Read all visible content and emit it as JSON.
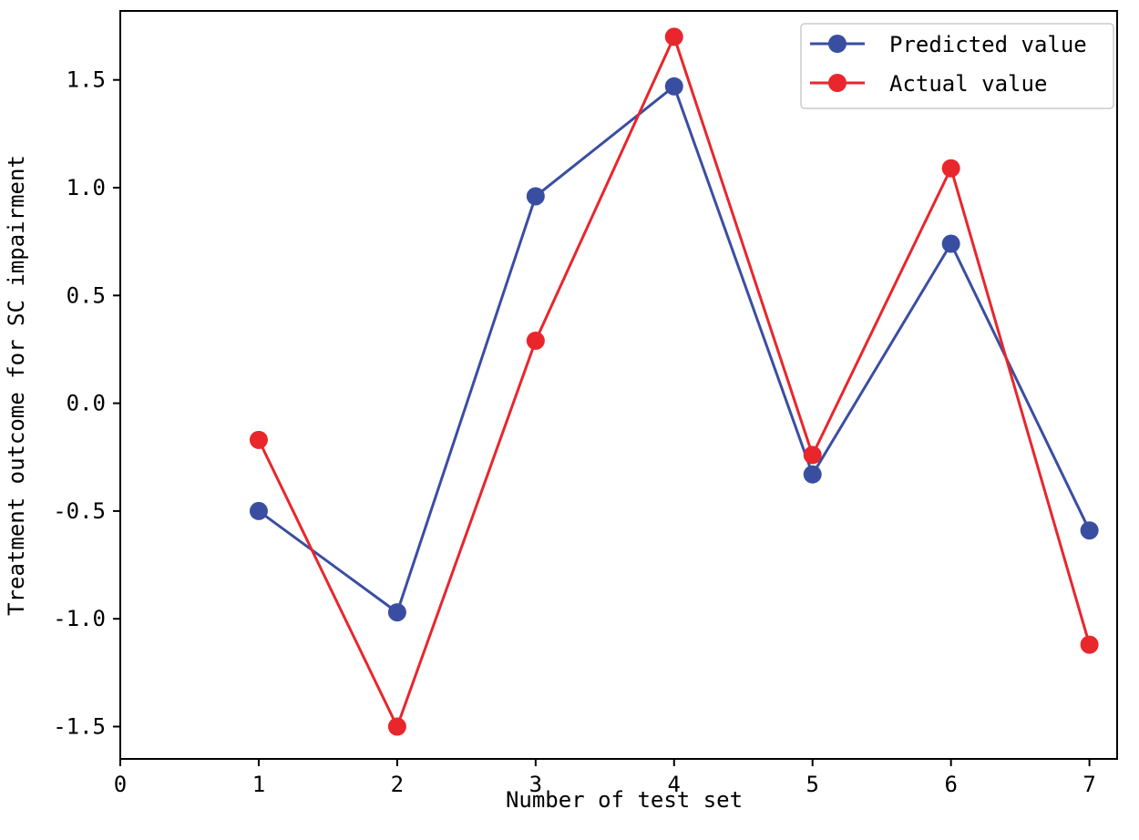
{
  "chart_data": {
    "type": "line",
    "xlabel": "Number of test set",
    "ylabel": "Treatment outcome for SC impairment",
    "xlim": [
      0,
      7.2
    ],
    "ylim": [
      -1.65,
      1.82
    ],
    "x_ticks": [
      0,
      1,
      2,
      3,
      4,
      5,
      6,
      7
    ],
    "x_tick_labels": [
      "0",
      "1",
      "2",
      "3",
      "4",
      "5",
      "6",
      "7"
    ],
    "y_ticks": [
      -1.5,
      -1.0,
      -0.5,
      0.0,
      0.5,
      1.0,
      1.5
    ],
    "y_tick_labels": [
      "-1.5",
      "-1.0",
      "-0.5",
      "0.0",
      "0.5",
      "1.0",
      "1.5"
    ],
    "legend_position": "top-right",
    "x": [
      1,
      2,
      3,
      4,
      5,
      6,
      7
    ],
    "series": [
      {
        "name": "Predicted value",
        "color": "#3a4ea1",
        "values": [
          -0.5,
          -0.97,
          0.96,
          1.47,
          -0.33,
          0.74,
          -0.59
        ]
      },
      {
        "name": "Actual value",
        "color": "#e8262c",
        "values": [
          -0.17,
          -1.5,
          0.29,
          1.7,
          -0.24,
          1.09,
          -1.12
        ]
      }
    ]
  }
}
